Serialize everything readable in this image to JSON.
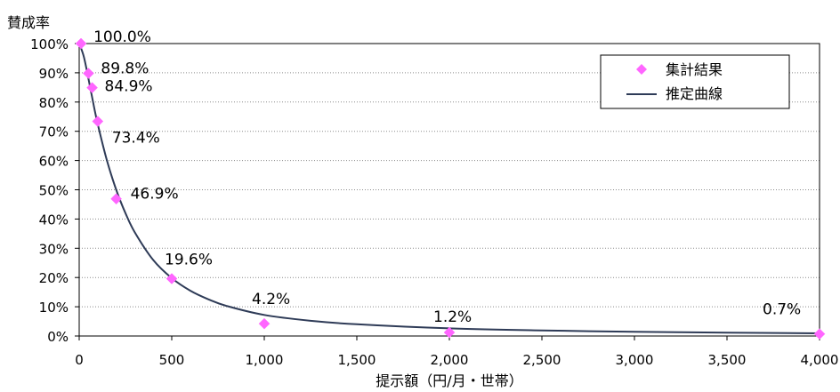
{
  "chart_data": {
    "type": "scatter",
    "ylabel": "賛成率",
    "xlabel": "提示額（円/月・世帯）",
    "xlim": [
      0,
      4000
    ],
    "ylim": [
      0,
      100
    ],
    "x_ticks": [
      "0",
      "500",
      "1,000",
      "1,500",
      "2,000",
      "2,500",
      "3,000",
      "3,500",
      "4,000"
    ],
    "y_ticks": [
      "0%",
      "10%",
      "20%",
      "30%",
      "40%",
      "50%",
      "60%",
      "70%",
      "80%",
      "90%",
      "100%"
    ],
    "grid": true,
    "legend_position": "top-right",
    "series": [
      {
        "name": "集計結果",
        "kind": "markers",
        "marker": "diamond",
        "color": "#ff66ff",
        "x": [
          10,
          50,
          70,
          100,
          200,
          500,
          1000,
          2000,
          4000
        ],
        "y": [
          100.0,
          89.8,
          84.9,
          73.4,
          46.9,
          19.6,
          4.2,
          1.2,
          0.7
        ],
        "labels": [
          "100.0%",
          "89.8%",
          "84.9%",
          "73.4%",
          "46.9%",
          "19.6%",
          "4.2%",
          "1.2%",
          "0.7%"
        ]
      },
      {
        "name": "推定曲線",
        "kind": "line",
        "color": "#2e3b57",
        "x": [
          0,
          25,
          50,
          75,
          100,
          150,
          200,
          250,
          300,
          400,
          500,
          600,
          700,
          800,
          1000,
          1250,
          1500,
          2000,
          2500,
          3000,
          3500,
          4000
        ],
        "y": [
          100,
          95.5,
          88,
          80,
          72.5,
          60,
          50,
          42,
          35.5,
          26,
          19.8,
          15.5,
          12.5,
          10.2,
          7.2,
          5.2,
          4.0,
          2.6,
          1.9,
          1.45,
          1.15,
          0.9
        ]
      }
    ]
  }
}
